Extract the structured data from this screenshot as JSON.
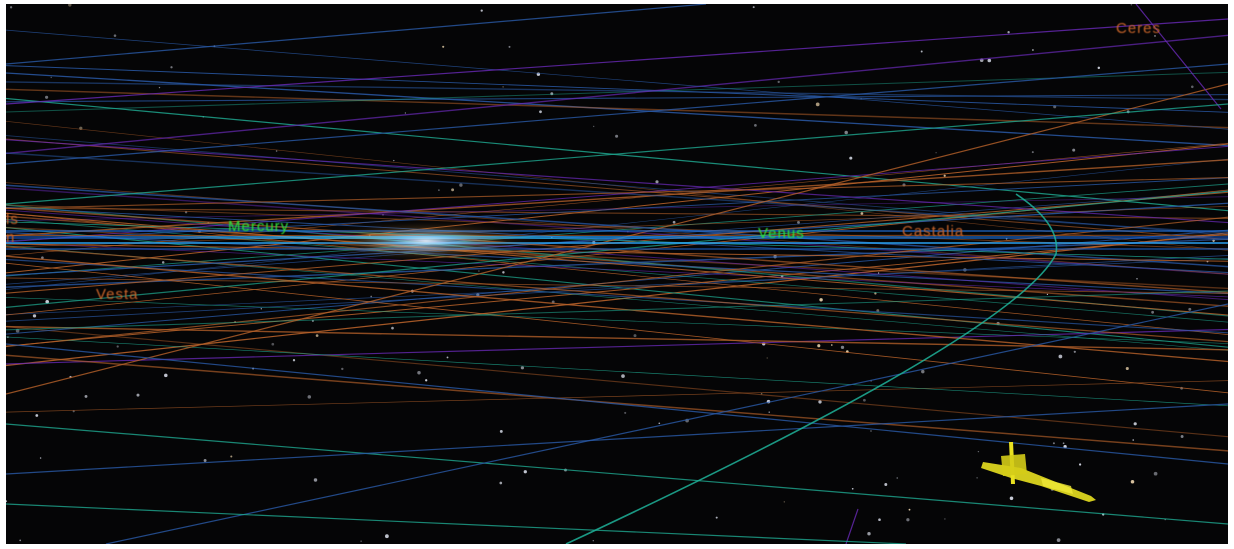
{
  "labels": {
    "mercury": "Mercury",
    "venus": "Venus",
    "castalia": "Castalia",
    "vesta": "Vesta",
    "ceres": "Ceres",
    "edge_top": "ls",
    "edge_bottom": "n"
  },
  "colors": {
    "background": "#050506",
    "planet_label": "#2ee03a",
    "minor_body_label": "#c8642a",
    "orbit_orange": "#b8622a",
    "orbit_blue": "#2a5aa8",
    "orbit_teal": "#1fa890",
    "orbit_purple": "#6a2ab8",
    "spacecraft": "#e8e020"
  },
  "icons": {
    "spacecraft": "spacecraft-model-icon"
  }
}
